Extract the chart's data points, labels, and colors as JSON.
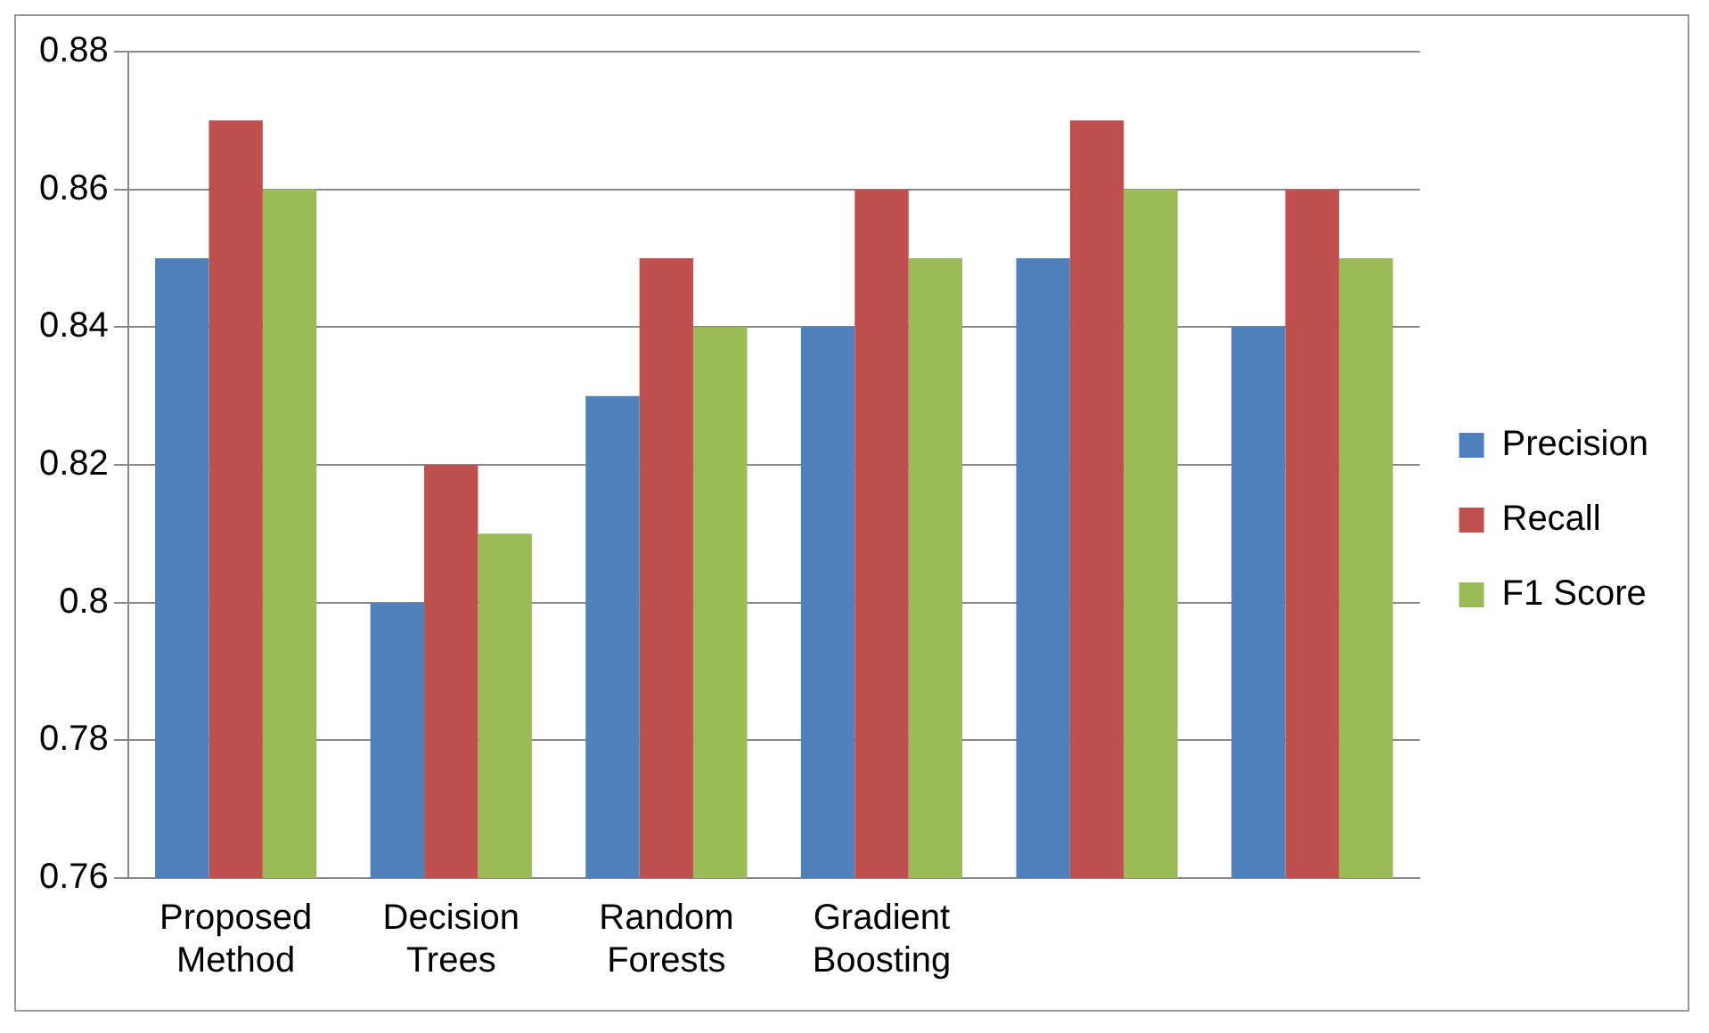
{
  "chart_data": {
    "type": "bar",
    "categories": [
      "Proposed Method",
      "Decision Trees",
      "Random Forests",
      "Gradient Boosting",
      null,
      null
    ],
    "series": [
      {
        "name": "Precision",
        "color": "#4f81bd",
        "values": [
          0.85,
          0.8,
          0.83,
          0.84,
          0.85,
          0.84
        ]
      },
      {
        "name": "Recall",
        "color": "#c0504d",
        "values": [
          0.87,
          0.82,
          0.85,
          0.86,
          0.87,
          0.86
        ]
      },
      {
        "name": "F1 Score",
        "color": "#9bbb59",
        "values": [
          0.86,
          0.81,
          0.84,
          0.85,
          0.86,
          0.85
        ]
      }
    ],
    "ylim": [
      0.76,
      0.88
    ],
    "yticks": [
      0.76,
      0.78,
      {
        "value": 0.8,
        "label": "0.8"
      },
      0.82,
      0.84,
      0.86,
      0.88
    ],
    "grid": "y",
    "legend": "right"
  }
}
